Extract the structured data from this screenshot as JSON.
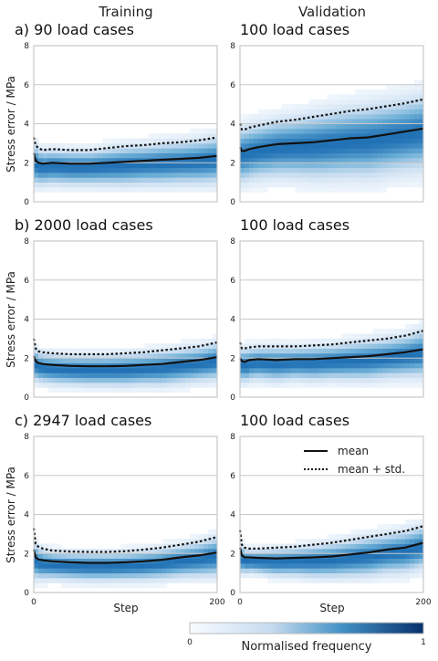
{
  "figure": {
    "column_titles": [
      "Training",
      "Validation"
    ],
    "ylabel": "Stress error / MPa",
    "xlabel": "Step",
    "colorbar": {
      "label": "Normalised frequency",
      "min_label": "0",
      "max_label": "1"
    },
    "legend": {
      "mean": "mean",
      "mean_std": "mean + std.",
      "position": "top-right of bottom-right panel"
    }
  },
  "chart_data": [
    {
      "type": "heatmap",
      "row_label": "a)",
      "title": "90 load cases",
      "xlim": [
        0,
        200
      ],
      "ylim": [
        0,
        8
      ],
      "yticks": [
        0,
        2,
        4,
        6,
        8
      ],
      "xticks": [
        0,
        200
      ],
      "series": [
        {
          "name": "mean",
          "x": [
            0,
            2,
            5,
            10,
            20,
            40,
            60,
            80,
            100,
            120,
            140,
            160,
            180,
            200
          ],
          "y": [
            2.5,
            2.1,
            2.0,
            1.95,
            2.0,
            1.95,
            1.95,
            2.0,
            2.05,
            2.1,
            2.15,
            2.2,
            2.25,
            2.35
          ]
        },
        {
          "name": "mean + std.",
          "x": [
            0,
            2,
            5,
            10,
            20,
            40,
            60,
            80,
            100,
            120,
            140,
            160,
            180,
            200
          ],
          "y": [
            3.3,
            2.9,
            2.75,
            2.65,
            2.7,
            2.65,
            2.65,
            2.75,
            2.85,
            2.9,
            3.0,
            3.05,
            3.15,
            3.3
          ]
        }
      ]
    },
    {
      "type": "heatmap",
      "title": "100 load cases",
      "xlim": [
        0,
        200
      ],
      "ylim": [
        0,
        8
      ],
      "yticks": [
        0,
        2,
        4,
        6,
        8
      ],
      "xticks": [
        0,
        200
      ],
      "series": [
        {
          "name": "mean",
          "x": [
            0,
            2,
            5,
            10,
            20,
            40,
            60,
            80,
            100,
            120,
            140,
            160,
            180,
            200
          ],
          "y": [
            2.8,
            2.6,
            2.6,
            2.7,
            2.8,
            2.95,
            3.0,
            3.05,
            3.15,
            3.25,
            3.3,
            3.45,
            3.6,
            3.75
          ]
        },
        {
          "name": "mean + std.",
          "x": [
            0,
            2,
            5,
            10,
            20,
            40,
            60,
            80,
            100,
            120,
            140,
            160,
            180,
            200
          ],
          "y": [
            4.0,
            3.7,
            3.7,
            3.8,
            3.9,
            4.1,
            4.2,
            4.35,
            4.5,
            4.65,
            4.75,
            4.9,
            5.05,
            5.25
          ]
        }
      ]
    },
    {
      "type": "heatmap",
      "row_label": "b)",
      "title": "2000 load cases",
      "xlim": [
        0,
        200
      ],
      "ylim": [
        0,
        8
      ],
      "yticks": [
        0,
        2,
        4,
        6,
        8
      ],
      "xticks": [
        0,
        200
      ],
      "series": [
        {
          "name": "mean",
          "x": [
            0,
            2,
            5,
            10,
            20,
            40,
            60,
            80,
            100,
            120,
            140,
            160,
            180,
            200
          ],
          "y": [
            2.1,
            1.85,
            1.75,
            1.7,
            1.65,
            1.6,
            1.58,
            1.58,
            1.6,
            1.65,
            1.7,
            1.8,
            1.9,
            2.05
          ]
        },
        {
          "name": "mean + std.",
          "x": [
            0,
            2,
            5,
            10,
            20,
            40,
            60,
            80,
            100,
            120,
            140,
            160,
            180,
            200
          ],
          "y": [
            3.0,
            2.5,
            2.35,
            2.3,
            2.25,
            2.2,
            2.2,
            2.2,
            2.25,
            2.3,
            2.4,
            2.5,
            2.6,
            2.8
          ]
        }
      ]
    },
    {
      "type": "heatmap",
      "title": "100 load cases",
      "xlim": [
        0,
        200
      ],
      "ylim": [
        0,
        8
      ],
      "yticks": [
        0,
        2,
        4,
        6,
        8
      ],
      "xticks": [
        0,
        200
      ],
      "series": [
        {
          "name": "mean",
          "x": [
            0,
            2,
            5,
            10,
            20,
            40,
            60,
            80,
            100,
            120,
            140,
            160,
            180,
            200
          ],
          "y": [
            2.0,
            1.85,
            1.8,
            1.9,
            1.95,
            1.9,
            1.95,
            1.95,
            2.0,
            2.05,
            2.1,
            2.2,
            2.3,
            2.45
          ]
        },
        {
          "name": "mean + std.",
          "x": [
            0,
            2,
            5,
            10,
            20,
            40,
            60,
            80,
            100,
            120,
            140,
            160,
            180,
            200
          ],
          "y": [
            2.8,
            2.5,
            2.5,
            2.55,
            2.6,
            2.6,
            2.6,
            2.65,
            2.7,
            2.8,
            2.9,
            3.0,
            3.15,
            3.4
          ]
        }
      ]
    },
    {
      "type": "heatmap",
      "row_label": "c)",
      "title": "2947 load cases",
      "xlim": [
        0,
        200
      ],
      "ylim": [
        0,
        8
      ],
      "yticks": [
        0,
        2,
        4,
        6,
        8
      ],
      "xticks": [
        0,
        200
      ],
      "series": [
        {
          "name": "mean",
          "x": [
            0,
            2,
            5,
            10,
            20,
            40,
            60,
            80,
            100,
            120,
            140,
            160,
            180,
            200
          ],
          "y": [
            2.2,
            1.8,
            1.7,
            1.65,
            1.6,
            1.55,
            1.52,
            1.52,
            1.55,
            1.6,
            1.68,
            1.8,
            1.9,
            2.05
          ]
        },
        {
          "name": "mean + std.",
          "x": [
            0,
            2,
            5,
            10,
            20,
            40,
            60,
            80,
            100,
            120,
            140,
            160,
            180,
            200
          ],
          "y": [
            3.3,
            2.5,
            2.35,
            2.25,
            2.15,
            2.1,
            2.08,
            2.08,
            2.12,
            2.2,
            2.3,
            2.45,
            2.6,
            2.85
          ]
        }
      ]
    },
    {
      "type": "heatmap",
      "title": "100 load cases",
      "xlim": [
        0,
        200
      ],
      "ylim": [
        0,
        8
      ],
      "yticks": [
        0,
        2,
        4,
        6,
        8
      ],
      "xticks": [
        0,
        200
      ],
      "series": [
        {
          "name": "mean",
          "x": [
            0,
            2,
            5,
            10,
            20,
            40,
            60,
            80,
            100,
            120,
            140,
            160,
            180,
            200
          ],
          "y": [
            2.3,
            1.9,
            1.8,
            1.8,
            1.78,
            1.75,
            1.78,
            1.8,
            1.85,
            1.95,
            2.05,
            2.2,
            2.3,
            2.55
          ]
        },
        {
          "name": "mean + std.",
          "x": [
            0,
            2,
            5,
            10,
            20,
            40,
            60,
            80,
            100,
            120,
            140,
            160,
            180,
            200
          ],
          "y": [
            3.2,
            2.45,
            2.3,
            2.25,
            2.25,
            2.3,
            2.35,
            2.45,
            2.55,
            2.7,
            2.85,
            3.0,
            3.15,
            3.4
          ]
        }
      ]
    }
  ]
}
